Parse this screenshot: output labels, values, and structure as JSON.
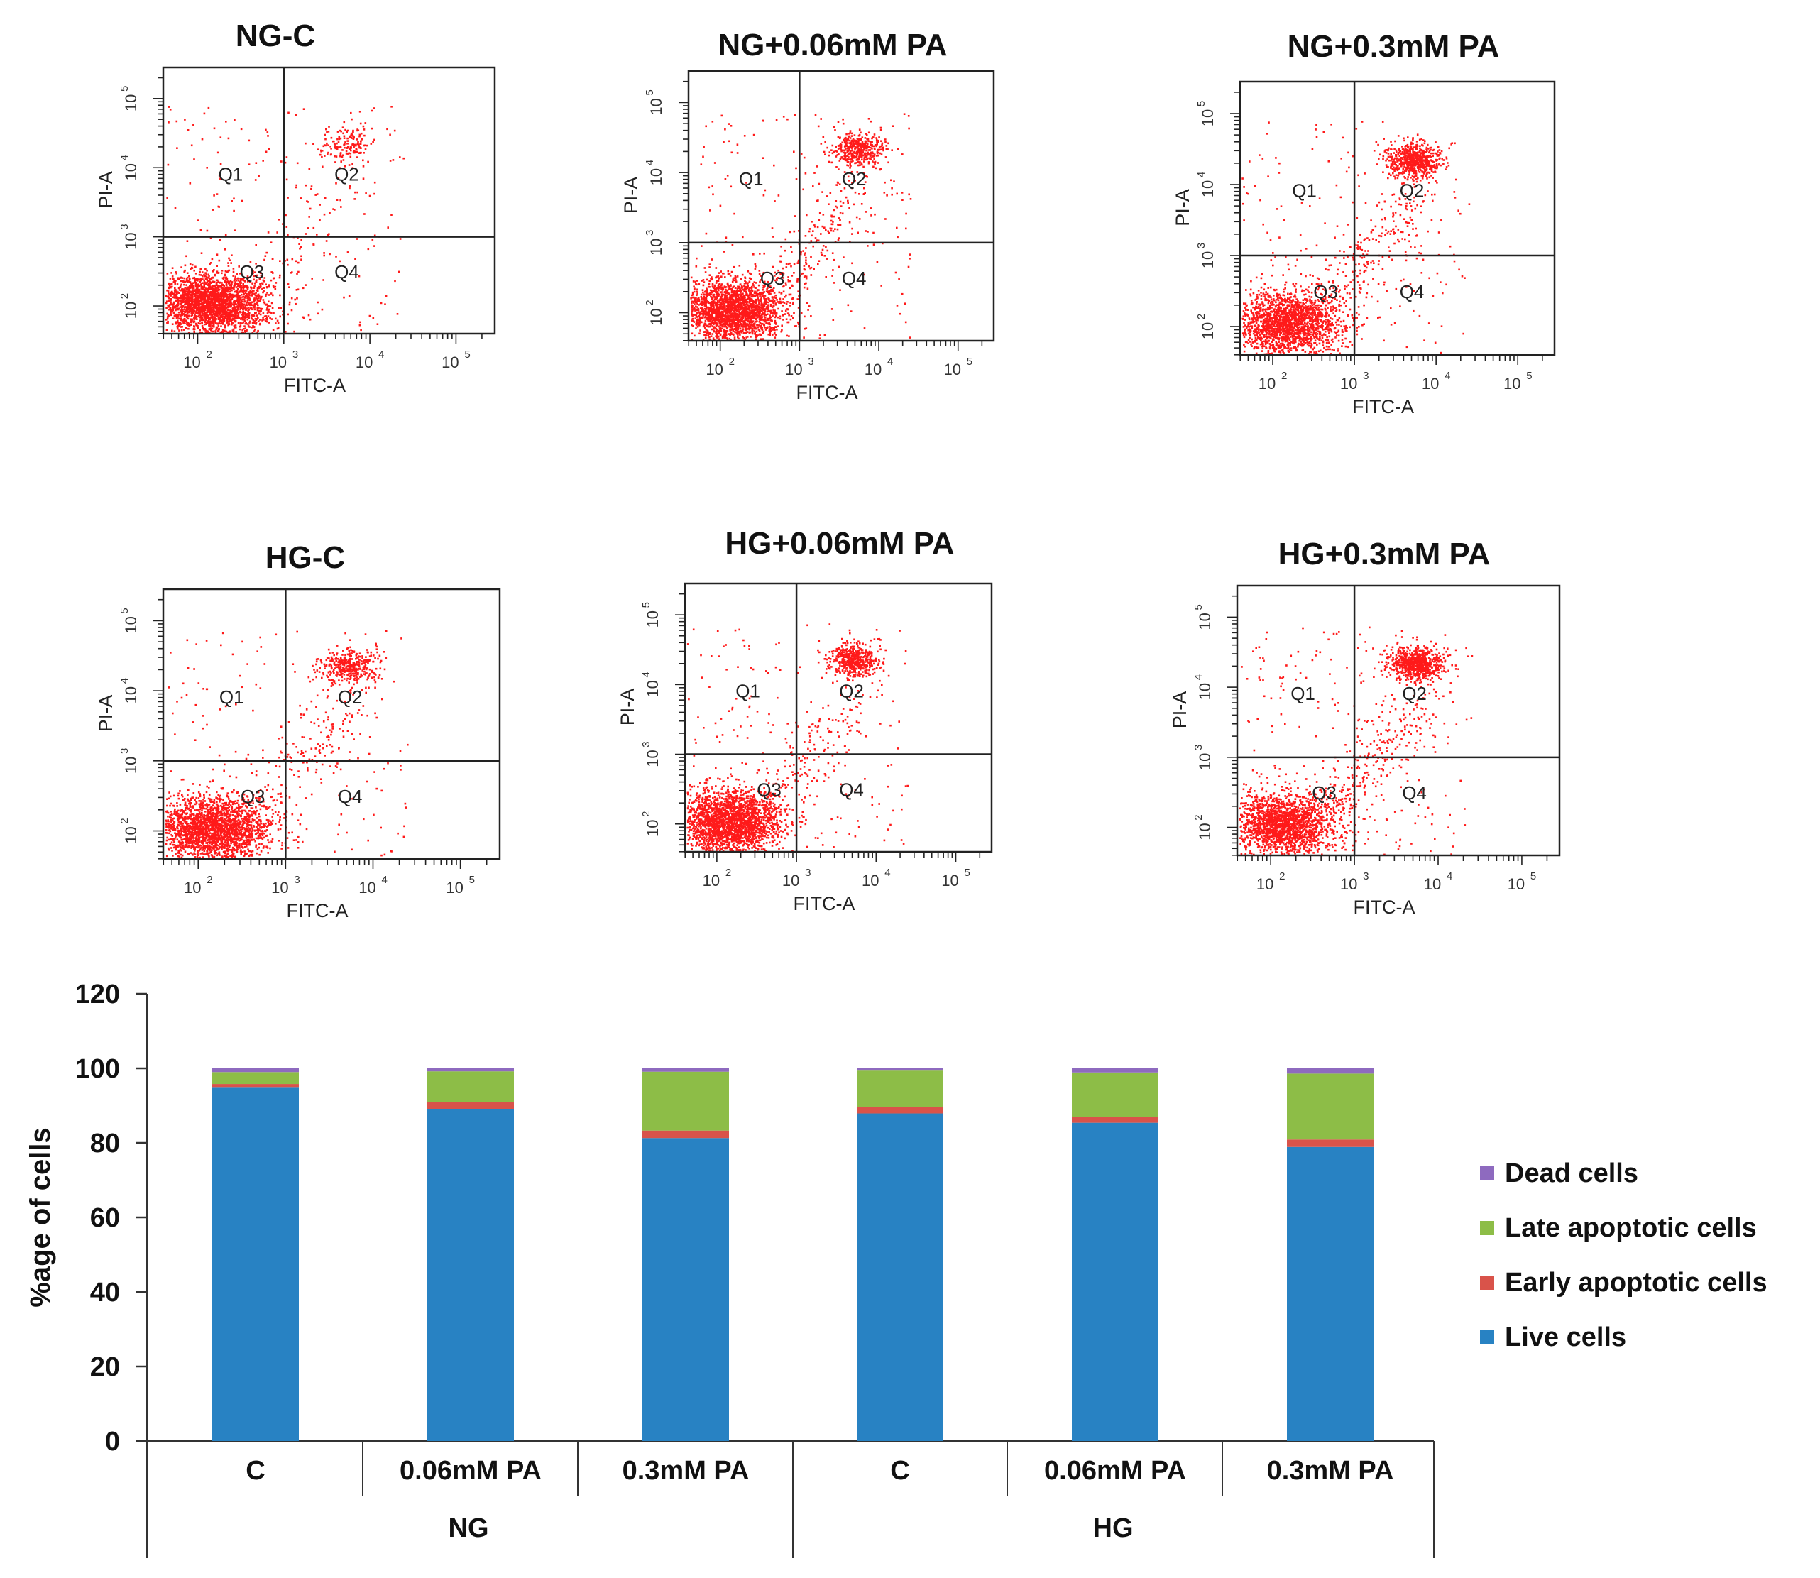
{
  "colors": {
    "dot": "#ff1a1a",
    "frame": "#222222",
    "text": "#111111",
    "tick_label": "#333333"
  },
  "flow_panels": [
    {
      "title": "NG-C",
      "xlabel": "FITC-A",
      "ylabel": "PI-A",
      "quadrants": [
        "Q1",
        "Q2",
        "Q3",
        "Q4"
      ],
      "x_ticks": [
        "10",
        "10",
        "10",
        "10"
      ],
      "x_tick_exponents": [
        "2",
        "3",
        "4",
        "5"
      ],
      "y_ticks": [
        "10",
        "10",
        "10",
        "10"
      ],
      "y_tick_exponents": [
        "2",
        "3",
        "4",
        "5"
      ]
    },
    {
      "title": "NG+0.06mM PA",
      "xlabel": "FITC-A",
      "ylabel": "PI-A",
      "quadrants": [
        "Q1",
        "Q2",
        "Q3",
        "Q4"
      ],
      "x_ticks": [
        "10",
        "10",
        "10",
        "10"
      ],
      "x_tick_exponents": [
        "2",
        "3",
        "4",
        "5"
      ],
      "y_ticks": [
        "10",
        "10",
        "10",
        "10"
      ],
      "y_tick_exponents": [
        "2",
        "3",
        "4",
        "5"
      ]
    },
    {
      "title": "NG+0.3mM PA",
      "xlabel": "FITC-A",
      "ylabel": "PI-A",
      "quadrants": [
        "Q1",
        "Q2",
        "Q3",
        "Q4"
      ],
      "x_ticks": [
        "10",
        "10",
        "10",
        "10"
      ],
      "x_tick_exponents": [
        "2",
        "3",
        "4",
        "5"
      ],
      "y_ticks": [
        "10",
        "10",
        "10",
        "10"
      ],
      "y_tick_exponents": [
        "2",
        "3",
        "4",
        "5"
      ]
    },
    {
      "title": "HG-C",
      "xlabel": "FITC-A",
      "ylabel": "PI-A",
      "quadrants": [
        "Q1",
        "Q2",
        "Q3",
        "Q4"
      ],
      "x_ticks": [
        "10",
        "10",
        "10",
        "10"
      ],
      "x_tick_exponents": [
        "2",
        "3",
        "4",
        "5"
      ],
      "y_ticks": [
        "10",
        "10",
        "10",
        "10"
      ],
      "y_tick_exponents": [
        "2",
        "3",
        "4",
        "5"
      ]
    },
    {
      "title": "HG+0.06mM PA",
      "xlabel": "FITC-A",
      "ylabel": "PI-A",
      "quadrants": [
        "Q1",
        "Q2",
        "Q3",
        "Q4"
      ],
      "x_ticks": [
        "10",
        "10",
        "10",
        "10"
      ],
      "x_tick_exponents": [
        "2",
        "3",
        "4",
        "5"
      ],
      "y_ticks": [
        "10",
        "10",
        "10",
        "10"
      ],
      "y_tick_exponents": [
        "2",
        "3",
        "4",
        "5"
      ]
    },
    {
      "title": "HG+0.3mM PA",
      "xlabel": "FITC-A",
      "ylabel": "PI-A",
      "quadrants": [
        "Q1",
        "Q2",
        "Q3",
        "Q4"
      ],
      "x_ticks": [
        "10",
        "10",
        "10",
        "10"
      ],
      "x_tick_exponents": [
        "2",
        "3",
        "4",
        "5"
      ],
      "y_ticks": [
        "10",
        "10",
        "10",
        "10"
      ],
      "y_tick_exponents": [
        "2",
        "3",
        "4",
        "5"
      ]
    }
  ],
  "chart_data": {
    "type": "bar",
    "stacked": true,
    "title": "",
    "xlabel": "",
    "ylabel": "%age of cells",
    "ylim": [
      0,
      120
    ],
    "y_ticks": [
      "0",
      "20",
      "40",
      "60",
      "80",
      "100",
      "120"
    ],
    "y_tick_values": [
      0,
      20,
      40,
      60,
      80,
      100,
      120
    ],
    "categories": [
      "C",
      "0.06mM PA",
      "0.3mM PA",
      "C",
      "0.06mM PA",
      "0.3mM PA"
    ],
    "groups": [
      {
        "label": "NG",
        "span": [
          0,
          2
        ]
      },
      {
        "label": "HG",
        "span": [
          3,
          5
        ]
      }
    ],
    "series": [
      {
        "name": "Live cells",
        "color": "#2882c3",
        "values": [
          94.8,
          89.0,
          81.3,
          87.9,
          85.4,
          78.9
        ]
      },
      {
        "name": "Early apoptotic cells",
        "color": "#d9534a",
        "values": [
          1.0,
          2.0,
          2.0,
          1.7,
          1.6,
          2.0
        ]
      },
      {
        "name": "Late apoptotic cells",
        "color": "#8dbd47",
        "values": [
          3.2,
          8.2,
          15.8,
          9.8,
          11.9,
          17.7
        ]
      },
      {
        "name": "Dead cells",
        "color": "#8e6abf",
        "values": [
          1.0,
          0.8,
          0.9,
          0.6,
          1.1,
          1.4
        ]
      }
    ],
    "legend_order": [
      "Dead cells",
      "Late apoptotic cells",
      "Early apoptotic cells",
      "Live cells"
    ],
    "legend_position": "right"
  }
}
